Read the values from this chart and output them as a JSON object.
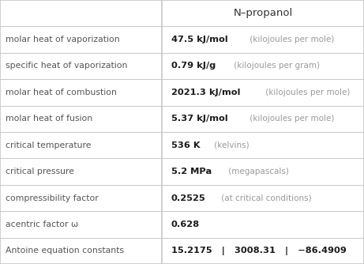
{
  "title": "N–propanol",
  "background": "#ffffff",
  "border_color": "#c8c8c8",
  "header_text_color": "#333333",
  "row_label_color": "#555555",
  "value_bold_color": "#1a1a1a",
  "value_unit_color": "#999999",
  "col_split": 0.445,
  "figsize": [
    4.61,
    3.34
  ],
  "dpi": 100,
  "rows": [
    {
      "label": "molar heat of vaporization",
      "value_bold": "47.5 kJ/mol",
      "value_unit": " (kilojoules per mole)"
    },
    {
      "label": "specific heat of vaporization",
      "value_bold": "0.79 kJ/g",
      "value_unit": " (kilojoules per gram)"
    },
    {
      "label": "molar heat of combustion",
      "value_bold": "2021.3 kJ/mol",
      "value_unit": " (kilojoules per mole)"
    },
    {
      "label": "molar heat of fusion",
      "value_bold": "5.37 kJ/mol",
      "value_unit": " (kilojoules per mole)"
    },
    {
      "label": "critical temperature",
      "value_bold": "536 K",
      "value_unit": " (kelvins)"
    },
    {
      "label": "critical pressure",
      "value_bold": "5.2 MPa",
      "value_unit": " (megapascals)"
    },
    {
      "label": "compressibility factor",
      "value_bold": "0.2525",
      "value_unit": " (at critical conditions)"
    },
    {
      "label": "acentric factor ω",
      "value_bold": "0.628",
      "value_unit": ""
    },
    {
      "label": "Antoine equation constants",
      "value_bold": "15.2175   |   3008.31   |   −86.4909",
      "value_unit": ""
    }
  ]
}
